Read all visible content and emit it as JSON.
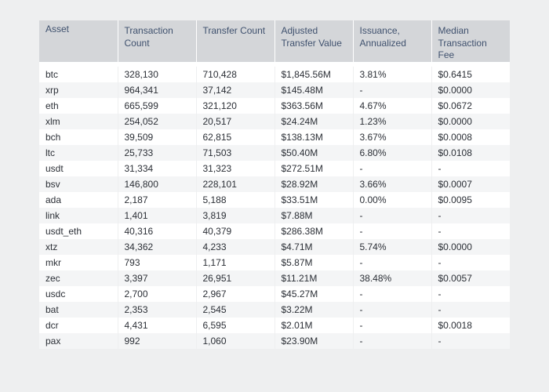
{
  "chart_data": {
    "type": "table",
    "columns": [
      "Asset",
      "Transaction\nCount",
      "Transfer Count",
      "Adjusted\nTransfer Value",
      "Issuance,\nAnnualized",
      "Median\nTransaction\nFee"
    ],
    "rows": [
      [
        "btc",
        "328,130",
        "710,428",
        "$1,845.56M",
        "3.81%",
        "$0.6415"
      ],
      [
        "xrp",
        "964,341",
        "37,142",
        "$145.48M",
        "-",
        "$0.0000"
      ],
      [
        "eth",
        "665,599",
        "321,120",
        "$363.56M",
        "4.67%",
        "$0.0672"
      ],
      [
        "xlm",
        "254,052",
        "20,517",
        "$24.24M",
        "1.23%",
        "$0.0000"
      ],
      [
        "bch",
        "39,509",
        "62,815",
        "$138.13M",
        "3.67%",
        "$0.0008"
      ],
      [
        "ltc",
        "25,733",
        "71,503",
        "$50.40M",
        "6.80%",
        "$0.0108"
      ],
      [
        "usdt",
        "31,334",
        "31,323",
        "$272.51M",
        "-",
        "-"
      ],
      [
        "bsv",
        "146,800",
        "228,101",
        "$28.92M",
        "3.66%",
        "$0.0007"
      ],
      [
        "ada",
        "2,187",
        "5,188",
        "$33.51M",
        "0.00%",
        "$0.0095"
      ],
      [
        "link",
        "1,401",
        "3,819",
        "$7.88M",
        "-",
        "-"
      ],
      [
        "usdt_eth",
        "40,316",
        "40,379",
        "$286.38M",
        "-",
        "-"
      ],
      [
        "xtz",
        "34,362",
        "4,233",
        "$4.71M",
        "5.74%",
        "$0.0000"
      ],
      [
        "mkr",
        "793",
        "1,171",
        "$5.87M",
        "-",
        "-"
      ],
      [
        "zec",
        "3,397",
        "26,951",
        "$11.21M",
        "38.48%",
        "$0.0057"
      ],
      [
        "usdc",
        "2,700",
        "2,967",
        "$45.27M",
        "-",
        "-"
      ],
      [
        "bat",
        "2,353",
        "2,545",
        "$3.22M",
        "-",
        "-"
      ],
      [
        "dcr",
        "4,431",
        "6,595",
        "$2.01M",
        "-",
        "$0.0018"
      ],
      [
        "pax",
        "992",
        "1,060",
        "$23.90M",
        "-",
        "-"
      ]
    ]
  }
}
